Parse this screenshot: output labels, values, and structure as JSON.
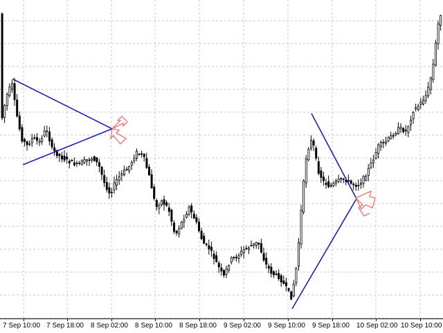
{
  "chart_data": {
    "type": "candlestick",
    "x_tick_labels": [
      "7 Sep 10:00",
      "7 Sep 18:00",
      "8 Sep 02:00",
      "8 Sep 10:00",
      "8 Sep 18:00",
      "9 Sep 02:00",
      "9 Sep 10:00",
      "9 Sep 18:00",
      "10 Sep 02:00",
      "10 Sep 10:00"
    ],
    "grid": true,
    "colors": {
      "candles": "#000000",
      "pattern_lines": "#1f1fbf",
      "arrows": "#f07070",
      "grid": "#c8c8c8",
      "background": "#ffffff"
    },
    "icons": [
      "breakout-arrow-icon",
      "breakout-arrow-icon"
    ]
  }
}
